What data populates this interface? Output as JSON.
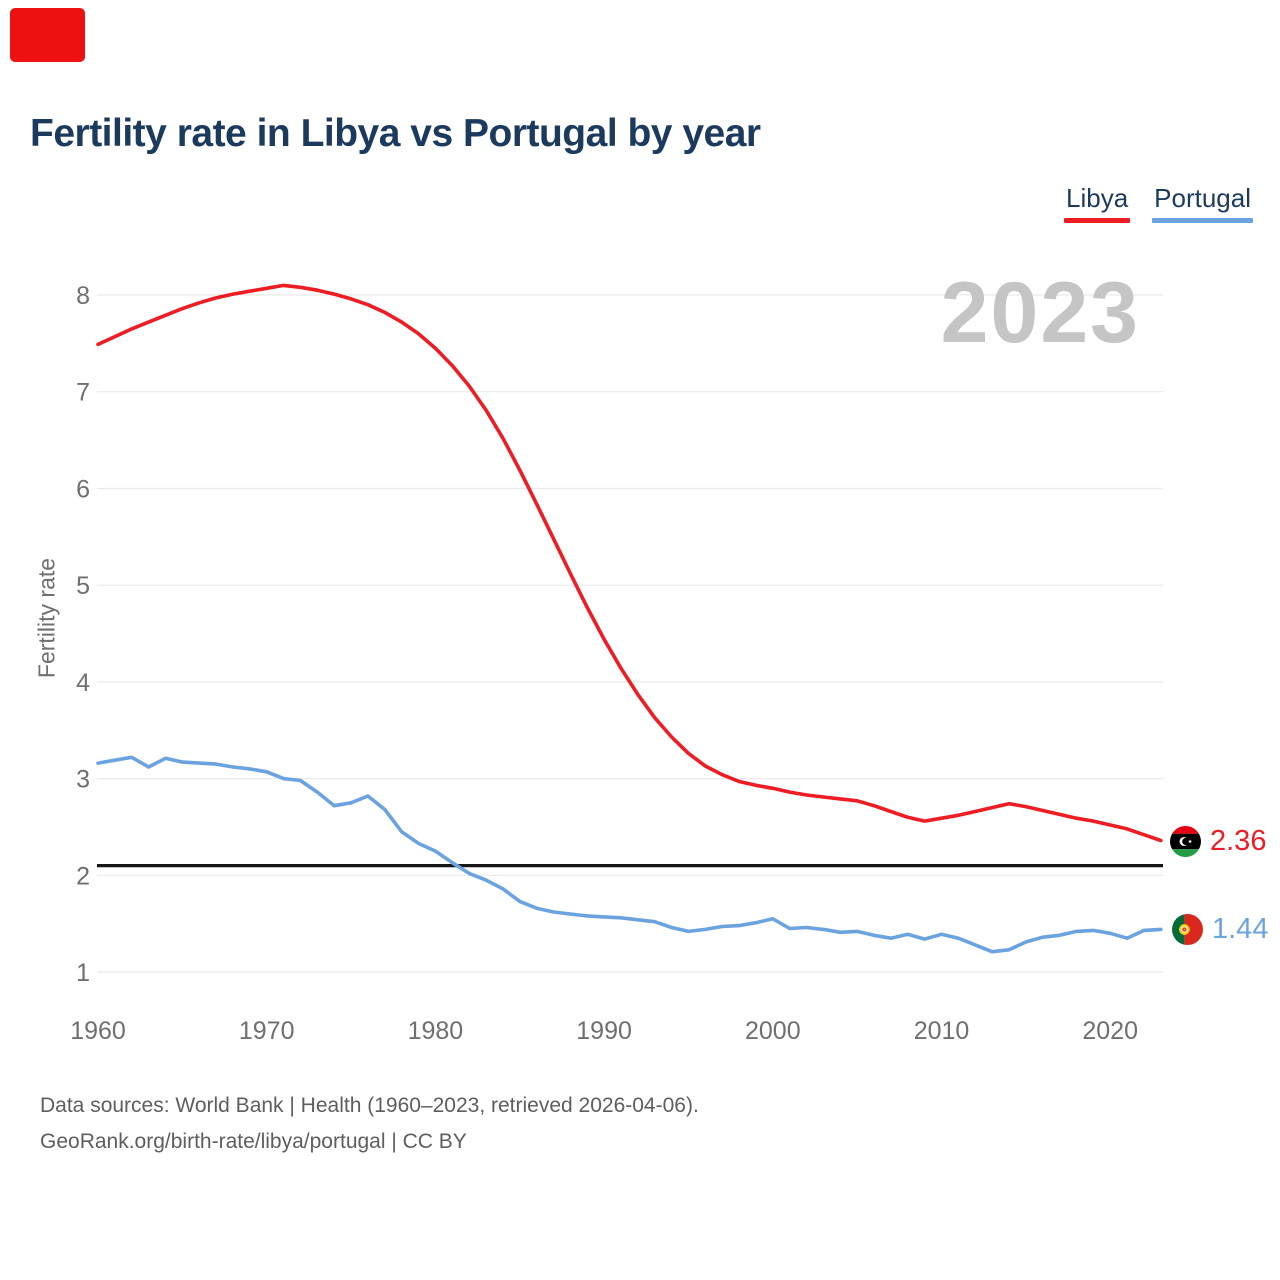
{
  "corner_marker": {
    "color": "#ee1111"
  },
  "header": {
    "title": "Fertility rate in Libya vs Portugal by year"
  },
  "legend": {
    "items": [
      {
        "label": "Libya",
        "color": "#ee1c23"
      },
      {
        "label": "Portugal",
        "color": "#6ba3e0"
      }
    ]
  },
  "chart": {
    "watermark": "2023",
    "y_axis_title": "Fertility rate"
  },
  "end_labels": {
    "libya": {
      "value": "2.36",
      "color": "#ee1c23",
      "flag": "libya-flag"
    },
    "portugal": {
      "value": "1.44",
      "color": "#6ba3e0",
      "flag": "portugal-flag"
    }
  },
  "footer": {
    "line1": "Data sources: World Bank | Health (1960–2023, retrieved 2026-04-06).",
    "line2": "GeoRank.org/birth-rate/libya/portugal | CC BY"
  },
  "chart_data": {
    "type": "line",
    "title": "Fertility rate in Libya vs Portugal by year",
    "xlabel": "",
    "ylabel": "Fertility rate",
    "x_range": [
      1960,
      2023
    ],
    "x_step": 1,
    "x_ticks": [
      1960,
      1970,
      1980,
      1990,
      2000,
      2010,
      2020
    ],
    "y_ticks": [
      1,
      2,
      3,
      4,
      5,
      6,
      7,
      8
    ],
    "ylim": [
      1,
      8.35
    ],
    "grid": "horizontal",
    "legend_position": "top-right",
    "replacement_line": 2.1,
    "series": [
      {
        "name": "Libya",
        "color": "#ee1c23",
        "values": [
          7.49,
          7.57,
          7.65,
          7.72,
          7.79,
          7.86,
          7.92,
          7.97,
          8.01,
          8.04,
          8.07,
          8.1,
          8.08,
          8.05,
          8.01,
          7.96,
          7.9,
          7.82,
          7.72,
          7.6,
          7.45,
          7.27,
          7.06,
          6.81,
          6.52,
          6.19,
          5.84,
          5.48,
          5.12,
          4.77,
          4.44,
          4.14,
          3.87,
          3.63,
          3.43,
          3.26,
          3.13,
          3.04,
          2.97,
          2.93,
          2.9,
          2.86,
          2.83,
          2.81,
          2.79,
          2.77,
          2.72,
          2.66,
          2.6,
          2.56,
          2.59,
          2.62,
          2.66,
          2.7,
          2.74,
          2.71,
          2.67,
          2.63,
          2.59,
          2.56,
          2.52,
          2.48,
          2.42,
          2.36
        ]
      },
      {
        "name": "Portugal",
        "color": "#6ba3e0",
        "values": [
          3.16,
          3.19,
          3.22,
          3.12,
          3.21,
          3.17,
          3.16,
          3.15,
          3.12,
          3.1,
          3.07,
          3.0,
          2.98,
          2.86,
          2.72,
          2.75,
          2.82,
          2.68,
          2.45,
          2.33,
          2.25,
          2.13,
          2.02,
          1.95,
          1.86,
          1.73,
          1.66,
          1.62,
          1.6,
          1.58,
          1.57,
          1.56,
          1.54,
          1.52,
          1.46,
          1.42,
          1.44,
          1.47,
          1.48,
          1.51,
          1.55,
          1.45,
          1.46,
          1.44,
          1.41,
          1.42,
          1.38,
          1.35,
          1.39,
          1.34,
          1.39,
          1.35,
          1.28,
          1.21,
          1.23,
          1.31,
          1.36,
          1.38,
          1.42,
          1.43,
          1.4,
          1.35,
          1.43,
          1.44
        ]
      }
    ]
  }
}
